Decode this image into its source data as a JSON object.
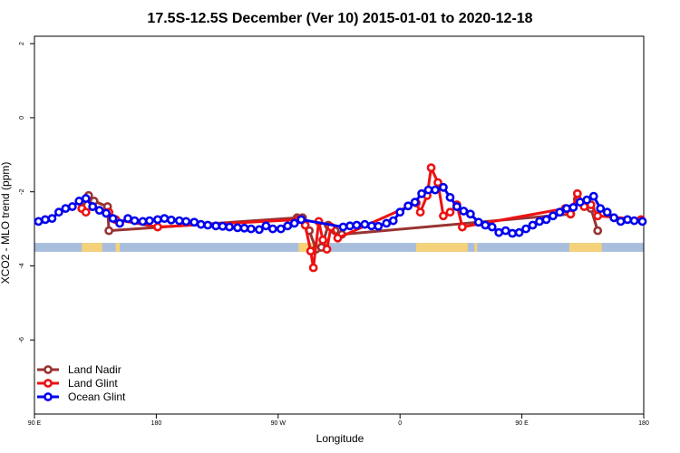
{
  "chart_data": {
    "type": "line",
    "title": "17.5S-12.5S December (Ver 10)   2015-01-01 to 2020-12-18",
    "xlabel": "Longitude",
    "ylabel": "XCO2 - MLO trend (ppm)",
    "x_ticks": [
      {
        "value": 90,
        "label": "90 E"
      },
      {
        "value": 180,
        "label": "180"
      },
      {
        "value": 270,
        "label": "90 W"
      },
      {
        "value": 360,
        "label": "0"
      },
      {
        "value": 450,
        "label": "90 E"
      },
      {
        "value": 540,
        "label": "180"
      }
    ],
    "y_ticks": [
      {
        "value": 2,
        "label": "2"
      },
      {
        "value": 0,
        "label": "0"
      },
      {
        "value": -2,
        "label": "-2"
      },
      {
        "value": -4,
        "label": "-4"
      },
      {
        "value": -6,
        "label": "-6"
      }
    ],
    "xlim": [
      90,
      540
    ],
    "ylim": [
      -8,
      2.2
    ],
    "grid": false,
    "legend_position": "bottom-left",
    "land_band": {
      "y_range": [
        -3.62,
        -3.38
      ],
      "ocean_color": "#a8bedc",
      "land_color": "#f5d27a",
      "land_segments": [
        [
          125,
          140
        ],
        [
          150,
          153
        ],
        [
          285,
          306
        ],
        [
          372,
          410
        ],
        [
          415,
          417
        ],
        [
          485,
          509
        ]
      ]
    },
    "series": [
      {
        "name": "Land Nadir",
        "color": "#993333",
        "x": [
          125,
          130,
          134,
          144,
          145,
          284,
          288,
          293,
          298,
          302,
          307,
          312,
          317,
          486,
          491,
          496,
          501,
          506
        ],
        "y": [
          -2.45,
          -2.1,
          -2.25,
          -2.4,
          -3.05,
          -2.7,
          -2.7,
          -3.05,
          -3.55,
          -3.5,
          -2.9,
          -3.05,
          -3.15,
          -2.6,
          -2.2,
          -2.3,
          -2.45,
          -3.05
        ]
      },
      {
        "name": "Land Glint",
        "color": "#ee1111",
        "x": [
          125,
          128,
          133,
          145,
          150,
          181,
          285,
          290,
          294,
          296,
          300,
          303,
          306,
          309,
          314,
          372,
          375,
          380,
          383,
          388,
          392,
          397,
          402,
          406,
          482,
          486,
          491,
          496,
          501,
          506,
          538
        ],
        "y": [
          -2.45,
          -2.55,
          -2.4,
          -2.55,
          -2.75,
          -2.95,
          -2.75,
          -2.9,
          -3.6,
          -4.05,
          -2.8,
          -3.3,
          -3.55,
          -2.95,
          -3.25,
          -2.3,
          -2.55,
          -2.1,
          -1.35,
          -1.75,
          -2.65,
          -2.55,
          -2.35,
          -2.95,
          -2.45,
          -2.6,
          -2.05,
          -2.4,
          -2.35,
          -2.65,
          -2.75
        ]
      },
      {
        "name": "Ocean Glint",
        "color": "#0000ee",
        "x": [
          93,
          98,
          103,
          108,
          113,
          118,
          123,
          128,
          133,
          138,
          143,
          148,
          153,
          159,
          164,
          170,
          175,
          181,
          186,
          191,
          197,
          202,
          208,
          213,
          218,
          224,
          229,
          234,
          240,
          245,
          250,
          256,
          261,
          266,
          272,
          277,
          282,
          287,
          318,
          323,
          328,
          334,
          339,
          344,
          350,
          355,
          360,
          366,
          371,
          376,
          381,
          386,
          392,
          397,
          402,
          407,
          412,
          418,
          423,
          428,
          433,
          438,
          443,
          448,
          453,
          458,
          463,
          468,
          473,
          478,
          483,
          488,
          493,
          498,
          503,
          508,
          513,
          518,
          523,
          528,
          533,
          539
        ],
        "y": [
          -2.8,
          -2.75,
          -2.72,
          -2.55,
          -2.45,
          -2.4,
          -2.25,
          -2.18,
          -2.4,
          -2.5,
          -2.58,
          -2.72,
          -2.85,
          -2.72,
          -2.78,
          -2.8,
          -2.78,
          -2.75,
          -2.72,
          -2.76,
          -2.78,
          -2.8,
          -2.82,
          -2.88,
          -2.9,
          -2.92,
          -2.93,
          -2.95,
          -2.97,
          -2.98,
          -3.0,
          -3.02,
          -2.92,
          -3.0,
          -3.0,
          -2.92,
          -2.85,
          -2.75,
          -2.95,
          -2.92,
          -2.9,
          -2.88,
          -2.92,
          -2.93,
          -2.85,
          -2.78,
          -2.55,
          -2.38,
          -2.28,
          -2.05,
          -1.95,
          -1.95,
          -1.88,
          -2.15,
          -2.4,
          -2.52,
          -2.6,
          -2.82,
          -2.9,
          -2.95,
          -3.1,
          -3.05,
          -3.12,
          -3.1,
          -3.0,
          -2.9,
          -2.8,
          -2.75,
          -2.65,
          -2.55,
          -2.45,
          -2.42,
          -2.28,
          -2.22,
          -2.12,
          -2.45,
          -2.55,
          -2.7,
          -2.8,
          -2.75,
          -2.78,
          -2.8
        ]
      }
    ]
  }
}
